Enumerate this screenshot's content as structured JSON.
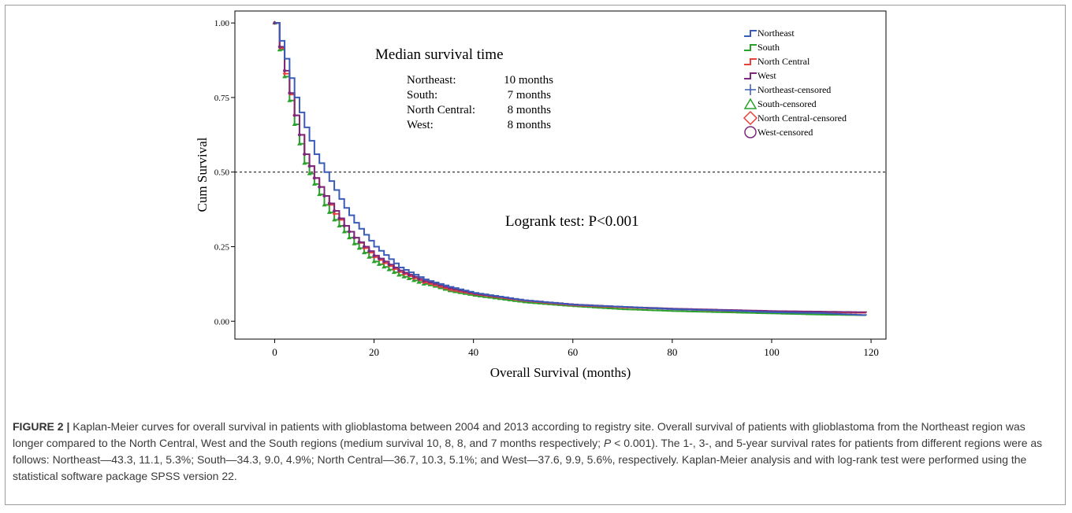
{
  "chart_data": {
    "type": "line",
    "xlabel": "Overall Survival (months)",
    "ylabel": "Cum Survival",
    "xlim": [
      -8,
      123
    ],
    "ylim": [
      -0.06,
      1.04
    ],
    "x_ticks": [
      0,
      20,
      40,
      60,
      80,
      100,
      120
    ],
    "y_ticks": [
      0.0,
      0.25,
      0.5,
      0.75,
      1.0
    ],
    "y_tick_labels": [
      "0.00",
      "0.25",
      "0.50",
      "0.75",
      "1.00"
    ],
    "reference_line": {
      "y": 0.5,
      "style": "dashed"
    },
    "legend_placement": "top-right",
    "annotations": {
      "median_title": "Median survival time",
      "median_rows": [
        {
          "region": "Northeast:",
          "value": "10 months"
        },
        {
          "region": "South:",
          "value": "7 months"
        },
        {
          "region": "North Central:",
          "value": "8 months"
        },
        {
          "region": "West:",
          "value": "8 months"
        }
      ],
      "logrank": "Logrank test: P<0.001"
    },
    "legend": [
      {
        "label": "Northeast",
        "kind": "line",
        "color": "#3b5bb8"
      },
      {
        "label": "South",
        "kind": "line",
        "color": "#2ca02c"
      },
      {
        "label": "North Central",
        "kind": "line",
        "color": "#e8413c"
      },
      {
        "label": "West",
        "kind": "line",
        "color": "#7b2a7b"
      },
      {
        "label": "Northeast-censored",
        "kind": "plus",
        "color": "#3b5bb8"
      },
      {
        "label": "South-censored",
        "kind": "triangle",
        "color": "#2ca02c"
      },
      {
        "label": "North Central-censored",
        "kind": "diamond",
        "color": "#e8413c"
      },
      {
        "label": "West-censored",
        "kind": "circle",
        "color": "#7b2a7b"
      }
    ],
    "series": [
      {
        "name": "Northeast",
        "color": "#3b5bb8",
        "x": [
          0,
          2,
          4,
          6,
          8,
          10,
          12,
          14,
          16,
          18,
          20,
          25,
          30,
          35,
          40,
          50,
          60,
          70,
          80,
          90,
          100,
          110,
          119
        ],
        "y": [
          1.0,
          0.88,
          0.75,
          0.65,
          0.56,
          0.5,
          0.44,
          0.38,
          0.33,
          0.29,
          0.25,
          0.18,
          0.14,
          0.115,
          0.095,
          0.07,
          0.055,
          0.048,
          0.04,
          0.036,
          0.03,
          0.027,
          0.02
        ]
      },
      {
        "name": "South",
        "color": "#2ca02c",
        "x": [
          0,
          2,
          4,
          6,
          8,
          10,
          12,
          14,
          16,
          18,
          20,
          25,
          30,
          35,
          40,
          50,
          60,
          70,
          80,
          90,
          100,
          110,
          119
        ],
        "y": [
          1.0,
          0.82,
          0.66,
          0.53,
          0.46,
          0.39,
          0.34,
          0.3,
          0.26,
          0.23,
          0.2,
          0.155,
          0.125,
          0.1,
          0.085,
          0.063,
          0.05,
          0.04,
          0.034,
          0.03,
          0.026,
          0.022,
          0.02
        ]
      },
      {
        "name": "North Central",
        "color": "#e8413c",
        "x": [
          0,
          2,
          4,
          6,
          8,
          10,
          12,
          14,
          16,
          18,
          20,
          25,
          30,
          35,
          40,
          50,
          60,
          70,
          80,
          90,
          100,
          110,
          119
        ],
        "y": [
          1.0,
          0.83,
          0.69,
          0.56,
          0.48,
          0.42,
          0.36,
          0.32,
          0.28,
          0.245,
          0.215,
          0.165,
          0.13,
          0.105,
          0.09,
          0.068,
          0.053,
          0.046,
          0.04,
          0.035,
          0.032,
          0.03,
          0.028
        ]
      },
      {
        "name": "West",
        "color": "#7b2a7b",
        "x": [
          0,
          2,
          4,
          6,
          8,
          10,
          12,
          14,
          16,
          18,
          20,
          25,
          30,
          35,
          40,
          50,
          60,
          70,
          80,
          90,
          100,
          110,
          119
        ],
        "y": [
          1.0,
          0.84,
          0.69,
          0.56,
          0.48,
          0.42,
          0.37,
          0.32,
          0.28,
          0.25,
          0.22,
          0.17,
          0.135,
          0.11,
          0.092,
          0.07,
          0.056,
          0.048,
          0.042,
          0.038,
          0.034,
          0.032,
          0.03
        ]
      }
    ]
  },
  "caption": {
    "figure_label": "FIGURE 2",
    "separator": "|",
    "text_1": " Kaplan-Meier curves for overall survival in patients with glioblastoma between 2004 and 2013 according to registry site. Overall survival of patients with glioblastoma from the Northeast region was longer compared to the North Central, West and the South regions (medium survival 10, 8, 8, and 7 months respectively; ",
    "p_symbol": "P",
    "text_2": " < 0.001). The 1-, 3-, and 5-year survival rates for patients from different regions were as follows: Northeast—43.3, 11.1, 5.3%; South—34.3, 9.0, 4.9%; North Central—36.7, 10.3, 5.1%; and West—37.6, 9.9, 5.6%, respectively. Kaplan-Meier analysis and with log-rank test were performed using the statistical software package SPSS version 22."
  }
}
